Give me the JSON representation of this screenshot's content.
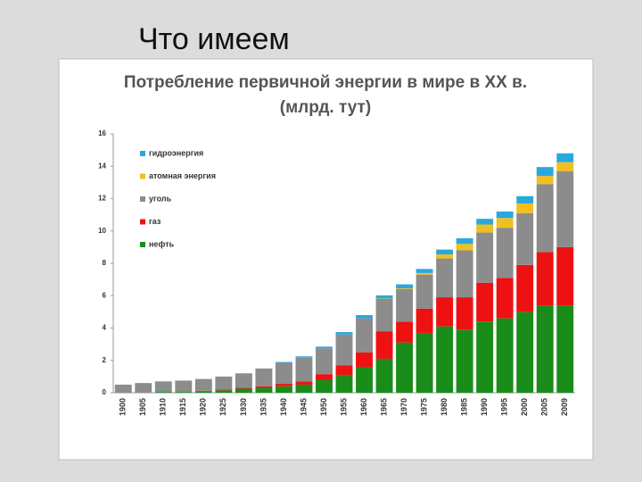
{
  "heading": "Что имеем",
  "chart_data": {
    "type": "stacked-bar",
    "title": "Потребление первичной энергии в мире в XX в.",
    "subtitle": "(млрд. тут)",
    "categories": [
      "1900",
      "1905",
      "1910",
      "1915",
      "1920",
      "1925",
      "1930",
      "1935",
      "1940",
      "1945",
      "1950",
      "1955",
      "1960",
      "1965",
      "1970",
      "1975",
      "1980",
      "1985",
      "1990",
      "1995",
      "2000",
      "2005",
      "2009"
    ],
    "series": [
      {
        "name": "нефть",
        "color": "#1a8c1a",
        "values": [
          0,
          0,
          0.05,
          0.05,
          0.1,
          0.15,
          0.25,
          0.3,
          0.4,
          0.5,
          0.8,
          1.1,
          1.6,
          2.1,
          3.1,
          3.7,
          4.1,
          3.9,
          4.4,
          4.6,
          5.0,
          5.4,
          5.4
        ]
      },
      {
        "name": "газ",
        "color": "#ee1111",
        "values": [
          0,
          0,
          0,
          0,
          0.02,
          0.05,
          0.05,
          0.1,
          0.15,
          0.2,
          0.35,
          0.6,
          0.9,
          1.7,
          1.3,
          1.5,
          1.8,
          2.0,
          2.4,
          2.5,
          2.9,
          3.3,
          3.6
        ]
      },
      {
        "name": "уголь",
        "color": "#8c8c8c",
        "values": [
          0.5,
          0.6,
          0.65,
          0.7,
          0.73,
          0.8,
          0.9,
          1.1,
          1.3,
          1.5,
          1.6,
          1.9,
          2.1,
          2.0,
          2.0,
          2.1,
          2.4,
          2.9,
          3.1,
          3.1,
          3.2,
          4.2,
          4.7
        ]
      },
      {
        "name": "атомная энергия",
        "color": "#f0c020",
        "values": [
          0,
          0,
          0,
          0,
          0,
          0,
          0,
          0,
          0,
          0,
          0,
          0,
          0,
          0.02,
          0.05,
          0.1,
          0.25,
          0.4,
          0.5,
          0.6,
          0.6,
          0.5,
          0.55
        ]
      },
      {
        "name": "гидроэнергия",
        "color": "#29a8e0",
        "values": [
          0,
          0,
          0,
          0,
          0,
          0,
          0,
          0,
          0.05,
          0.05,
          0.1,
          0.15,
          0.2,
          0.2,
          0.25,
          0.25,
          0.3,
          0.35,
          0.35,
          0.4,
          0.45,
          0.55,
          0.55
        ]
      }
    ],
    "ylim": [
      0,
      16
    ],
    "yticks": [
      0,
      2,
      4,
      6,
      8,
      10,
      12,
      14,
      16
    ]
  }
}
